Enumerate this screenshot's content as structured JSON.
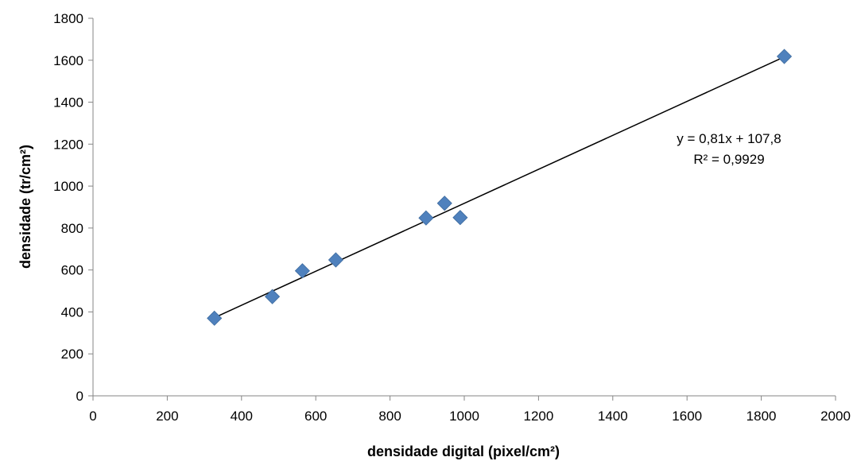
{
  "chart_data": {
    "type": "scatter",
    "xlabel": "densidade digital (pixel/cm²)",
    "ylabel": "densidade  (tr/cm²)",
    "xlim": [
      0,
      2000
    ],
    "ylim": [
      0,
      1800
    ],
    "x_ticks": [
      "0",
      "200",
      "400",
      "600",
      "800",
      "1000",
      "1200",
      "1400",
      "1600",
      "1800",
      "2000"
    ],
    "y_ticks": [
      "0",
      "200",
      "400",
      "600",
      "800",
      "1000",
      "1200",
      "1400",
      "1600",
      "1800"
    ],
    "series": [
      {
        "marker": "diamond",
        "color": "#4F81BD",
        "points": [
          {
            "x": 327,
            "y": 370
          },
          {
            "x": 483,
            "y": 473
          },
          {
            "x": 564,
            "y": 596
          },
          {
            "x": 654,
            "y": 648
          },
          {
            "x": 897,
            "y": 848
          },
          {
            "x": 947,
            "y": 918
          },
          {
            "x": 989,
            "y": 850
          },
          {
            "x": 1862,
            "y": 1618
          }
        ]
      }
    ],
    "trendline": {
      "slope": 0.81,
      "intercept": 107.8,
      "x_range": [
        327,
        1862
      ],
      "color": "#000000"
    },
    "annotation": {
      "equation": "y = 0,81x + 107,8",
      "r_squared": "R² = 0,9929"
    },
    "grid": false,
    "legend": "none"
  }
}
